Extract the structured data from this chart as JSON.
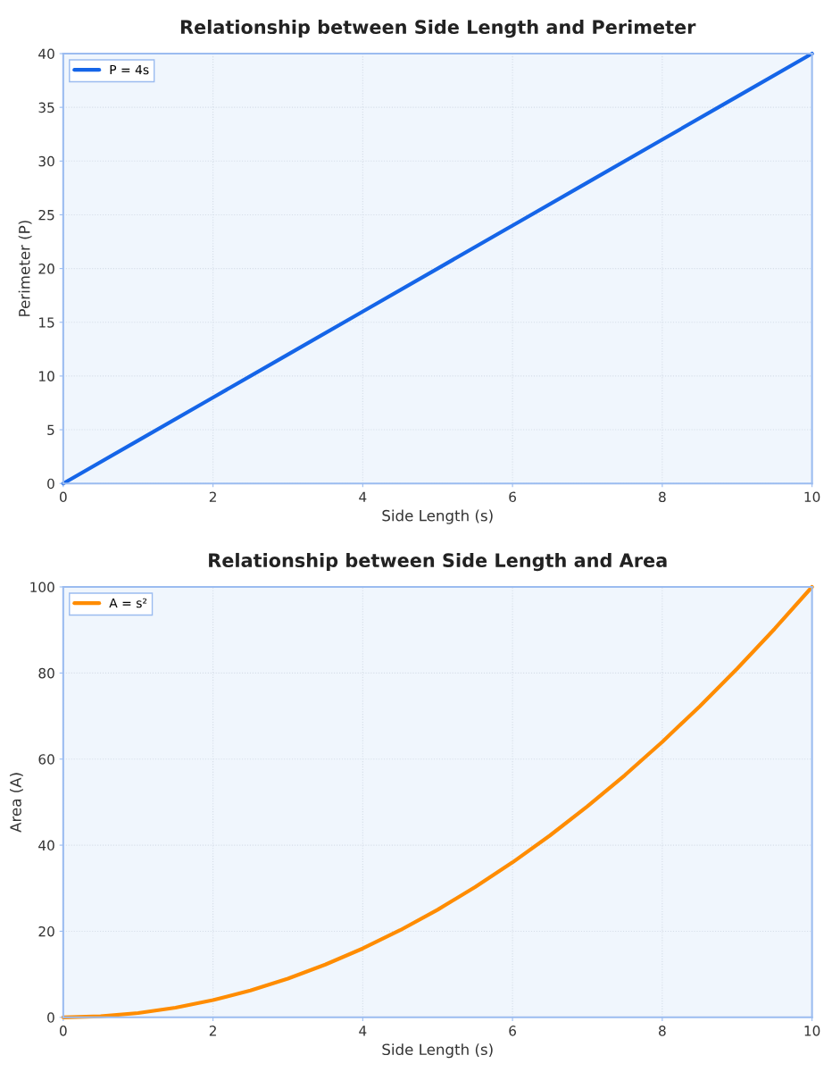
{
  "chart_data": [
    {
      "type": "line",
      "title": "Relationship between Side Length and Perimeter",
      "xlabel": "Side Length (s)",
      "ylabel": "Perimeter (P)",
      "x": [
        0,
        1,
        2,
        3,
        4,
        5,
        6,
        7,
        8,
        9,
        10
      ],
      "series": [
        {
          "name": "P = 4s",
          "color": "#1565e8",
          "values": [
            0,
            4,
            8,
            12,
            16,
            20,
            24,
            28,
            32,
            36,
            40
          ]
        }
      ],
      "xlim": [
        0,
        10
      ],
      "ylim": [
        0,
        40
      ],
      "xticks": [
        0,
        2,
        4,
        6,
        8,
        10
      ],
      "yticks": [
        0,
        5,
        10,
        15,
        20,
        25,
        30,
        35,
        40
      ],
      "grid": true,
      "legend": "top left",
      "line_style": "solid",
      "marker": "none"
    },
    {
      "type": "line",
      "title": "Relationship between Side Length and Area",
      "xlabel": "Side Length (s)",
      "ylabel": "Area (A)",
      "x": [
        0,
        0.5,
        1,
        1.5,
        2,
        2.5,
        3,
        3.5,
        4,
        4.5,
        5,
        5.5,
        6,
        6.5,
        7,
        7.5,
        8,
        8.5,
        9,
        9.5,
        10
      ],
      "series": [
        {
          "name": "A = s²",
          "color": "#ff8c00",
          "values": [
            0,
            0.25,
            1,
            2.25,
            4,
            6.25,
            9,
            12.25,
            16,
            20.25,
            25,
            30.25,
            36,
            42.25,
            49,
            56.25,
            64,
            72.25,
            81,
            90.25,
            100
          ]
        }
      ],
      "xlim": [
        0,
        10
      ],
      "ylim": [
        0,
        100
      ],
      "xticks": [
        0,
        2,
        4,
        6,
        8,
        10
      ],
      "yticks": [
        0,
        20,
        40,
        60,
        80,
        100
      ],
      "grid": true,
      "legend": "top left",
      "line_style": "solid",
      "marker": "none"
    }
  ]
}
